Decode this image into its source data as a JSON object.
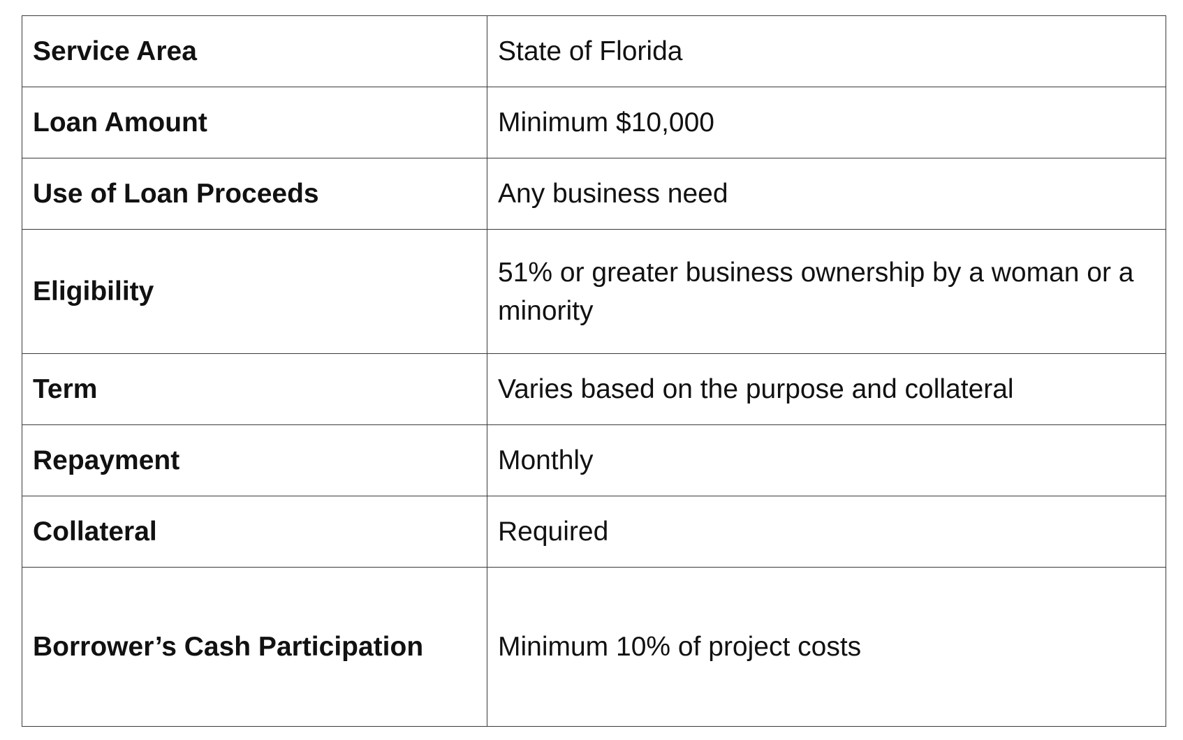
{
  "table": {
    "rows": [
      {
        "label": "Service Area",
        "value": "State of Florida"
      },
      {
        "label": "Loan Amount",
        "value": "Minimum $10,000"
      },
      {
        "label": "Use of Loan Proceeds",
        "value": "Any business need"
      },
      {
        "label": "Eligibility",
        "value": "51% or greater business ownership by a woman or a minority"
      },
      {
        "label": "Term",
        "value": "Varies based on the purpose and collateral"
      },
      {
        "label": "Repayment",
        "value": "Monthly"
      },
      {
        "label": "Collateral",
        "value": "Required"
      },
      {
        "label": "Borrower’s Cash Participation",
        "value": "Minimum 10% of project costs"
      }
    ]
  }
}
